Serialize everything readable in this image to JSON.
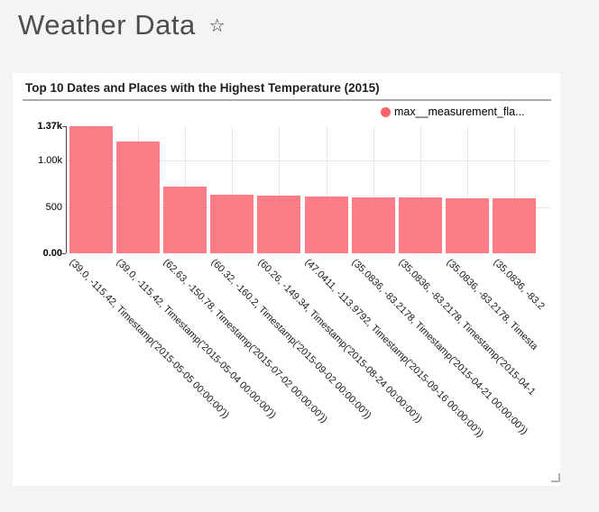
{
  "page": {
    "background": "#f4f4f4",
    "title": "Weather Data",
    "favorite_icon": "star-outline"
  },
  "card": {
    "title": "Top 10 Dates and Places with the Highest Temperature (2015)",
    "legend": {
      "label": "max__measurement_fla...",
      "marker": "circle"
    }
  },
  "chart_data": {
    "type": "bar",
    "title": "Top 10 Dates and Places with the Highest Temperature (2015)",
    "series": [
      {
        "name": "max__measurement_fla...",
        "values": [
          1370,
          1200,
          720,
          635,
          625,
          610,
          600,
          600,
          595,
          590
        ]
      }
    ],
    "categories": [
      "(39.0, -115.42, Timestamp('2015-05-05 00:00:00'))",
      "(39.0, -115.42, Timestamp('2015-05-04 00:00:00'))",
      "(62.63, -150.78, Timestamp('2015-07-02 00:00:00'))",
      "(60.32, -160.2, Timestamp('2015-09-02 00:00:00'))",
      "(60.26, -149.34, Timestamp('2015-08-24 00:00:00'))",
      "(47.0411, -113.9792, Timestamp('2015-09-16 00:00:00'))",
      "(35.0836, -83.2178, Timestamp('2015-04-21 00:00:00'))",
      "(35.0836, -83.2178, Timestamp('2015-04-1",
      "(35.0836, -83.2178, Timesta",
      "(35.0836, -83.2"
    ],
    "y_ticks": [
      {
        "label": "1.37k",
        "value": 1370,
        "bold": true
      },
      {
        "label": "1.00k",
        "value": 1000,
        "bold": false
      },
      {
        "label": "500",
        "value": 500,
        "bold": false
      },
      {
        "label": "0.00",
        "value": 0,
        "bold": true
      }
    ],
    "ylim": [
      0,
      1370
    ],
    "bar_color": "#fa616b",
    "bar_opacity": 0.82,
    "grid": true,
    "x_label_rotation": 45,
    "legend_position": "top-right"
  }
}
